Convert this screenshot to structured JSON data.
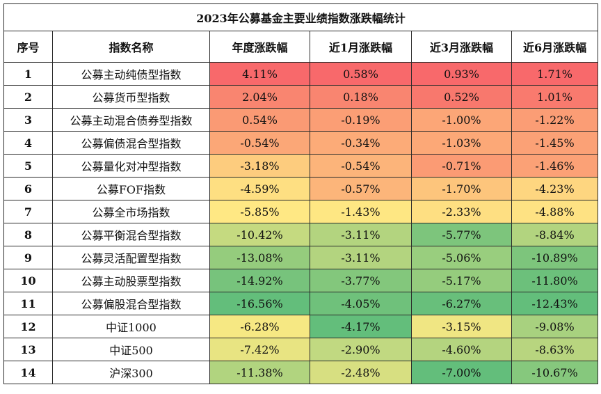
{
  "chart_data": {
    "type": "table",
    "title": "2023年公募基金主要业绩指数涨跌幅统计",
    "columns": [
      "序号",
      "指数名称",
      "年度涨跌幅",
      "近1月涨跌幅",
      "近3月涨跌幅",
      "近6月涨跌幅"
    ],
    "rows": [
      {
        "no": "1",
        "name": "公募主动纯债型指数",
        "values": [
          "4.11%",
          "0.58%",
          "0.93%",
          "1.71%"
        ],
        "colors": [
          "#f8696b",
          "#f8696b",
          "#f8696b",
          "#f8696b"
        ]
      },
      {
        "no": "2",
        "name": "公募货币型指数",
        "values": [
          "2.04%",
          "0.18%",
          "0.52%",
          "1.01%"
        ],
        "colors": [
          "#f98570",
          "#f98570",
          "#f8786d",
          "#f97a6e"
        ]
      },
      {
        "no": "3",
        "name": "公募主动混合债券型指数",
        "values": [
          "0.54%",
          "-0.19%",
          "-1.00%",
          "-1.22%"
        ],
        "colors": [
          "#fa9a74",
          "#fb9e75",
          "#fca677",
          "#fb9d75"
        ]
      },
      {
        "no": "4",
        "name": "公募偏债混合型指数",
        "values": [
          "-0.54%",
          "-0.34%",
          "-1.03%",
          "-1.45%"
        ],
        "colors": [
          "#fba777",
          "#fcab78",
          "#fca877",
          "#fba176"
        ]
      },
      {
        "no": "5",
        "name": "公募量化对冲型指数",
        "values": [
          "-3.18%",
          "-0.54%",
          "-0.71%",
          "-1.46%"
        ],
        "colors": [
          "#fdcc7e",
          "#fcb47a",
          "#fb9b74",
          "#fba176"
        ]
      },
      {
        "no": "6",
        "name": "公募FOF指数",
        "values": [
          "-4.59%",
          "-0.57%",
          "-1.70%",
          "-4.23%"
        ],
        "colors": [
          "#fedf82",
          "#fcb57a",
          "#fdc57c",
          "#fed680"
        ]
      },
      {
        "no": "7",
        "name": "公募全市场指数",
        "values": [
          "-5.85%",
          "-1.43%",
          "-2.33%",
          "-4.88%"
        ],
        "colors": [
          "#ffe884",
          "#fee783",
          "#fedf82",
          "#fee283"
        ]
      },
      {
        "no": "8",
        "name": "公募平衡混合型指数",
        "values": [
          "-10.42%",
          "-3.11%",
          "-5.77%",
          "-8.84%"
        ],
        "colors": [
          "#c5da80",
          "#b3d47f",
          "#7dc57c",
          "#b2d47f"
        ]
      },
      {
        "no": "9",
        "name": "公募灵活配置型指数",
        "values": [
          "-13.08%",
          "-3.11%",
          "-5.06%",
          "-10.89%"
        ],
        "colors": [
          "#95cc7d",
          "#b3d47f",
          "#99ce7e",
          "#7dc57c"
        ]
      },
      {
        "no": "10",
        "name": "公募主动股票型指数",
        "values": [
          "-14.92%",
          "-3.77%",
          "-5.17%",
          "-11.80%"
        ],
        "colors": [
          "#77c37c",
          "#83c77c",
          "#95cc7d",
          "#6cc07b"
        ]
      },
      {
        "no": "11",
        "name": "公募偏股混合型指数",
        "values": [
          "-16.56%",
          "-4.05%",
          "-6.27%",
          "-12.43%"
        ],
        "colors": [
          "#63be7b",
          "#6fc17b",
          "#68bf7b",
          "#63be7b"
        ]
      },
      {
        "no": "12",
        "name": "中证1000",
        "values": [
          "-6.28%",
          "-4.17%",
          "-3.15%",
          "-9.08%"
        ],
        "colors": [
          "#f6e883",
          "#63be7b",
          "#f0e683",
          "#a8d17f"
        ]
      },
      {
        "no": "13",
        "name": "中证500",
        "values": [
          "-7.42%",
          "-2.90%",
          "-4.60%",
          "-8.63%"
        ],
        "colors": [
          "#e8e482",
          "#c1d981",
          "#b4d47f",
          "#b8d57f"
        ]
      },
      {
        "no": "14",
        "name": "沪深300",
        "values": [
          "-11.38%",
          "-2.48%",
          "-7.00%",
          "-10.67%"
        ],
        "colors": [
          "#b1d47f",
          "#d7df81",
          "#63be7b",
          "#86c87d"
        ]
      }
    ]
  }
}
